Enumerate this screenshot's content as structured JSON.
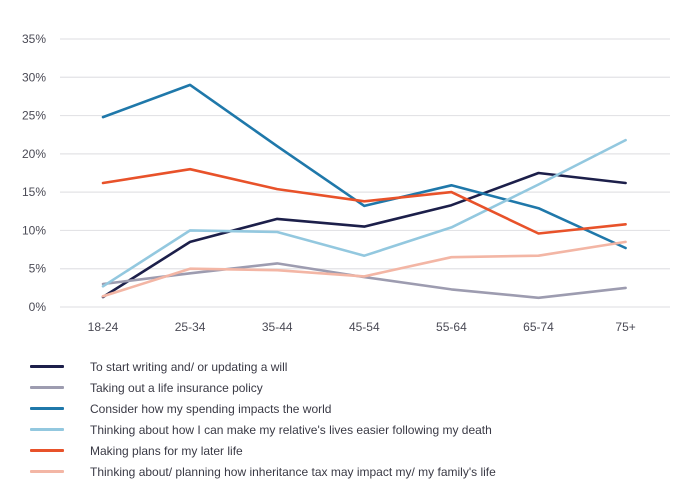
{
  "chart_data": {
    "type": "line",
    "title": "",
    "xlabel": "",
    "ylabel": "",
    "categories": [
      "18-24",
      "25-34",
      "35-44",
      "45-54",
      "55-64",
      "65-74",
      "75+"
    ],
    "y_ticks": [
      "0%",
      "5%",
      "10%",
      "15%",
      "20%",
      "25%",
      "30%",
      "35%"
    ],
    "ylim": [
      0,
      35
    ],
    "y_unit": "%",
    "grid": true,
    "legend_position": "bottom",
    "series": [
      {
        "name": "To start writing and/ or updating a will",
        "color": "#1c1f4a",
        "values": [
          1.3,
          8.5,
          11.5,
          10.5,
          13.3,
          17.5,
          16.2
        ]
      },
      {
        "name": "Taking out a life insurance policy",
        "color": "#9d9cb0",
        "values": [
          3.0,
          4.4,
          5.7,
          3.9,
          2.3,
          1.2,
          2.5
        ]
      },
      {
        "name": "Consider how my spending impacts the world",
        "color": "#1f78aa",
        "values": [
          24.8,
          29.0,
          21.0,
          13.2,
          15.9,
          12.9,
          7.7
        ]
      },
      {
        "name": "Thinking about how I can make my relative's lives easier following my death",
        "color": "#93c8df",
        "values": [
          2.7,
          10.0,
          9.8,
          6.7,
          10.4,
          16.0,
          21.8
        ]
      },
      {
        "name": "Making plans for my later life",
        "color": "#e8522a",
        "values": [
          16.2,
          18.0,
          15.4,
          13.8,
          15.0,
          9.6,
          10.8
        ]
      },
      {
        "name": "Thinking about/ planning how inheritance tax may impact my/ my family's life",
        "color": "#f3b6a5",
        "values": [
          1.4,
          5.0,
          4.8,
          4.0,
          6.5,
          6.7,
          8.5
        ]
      }
    ]
  }
}
